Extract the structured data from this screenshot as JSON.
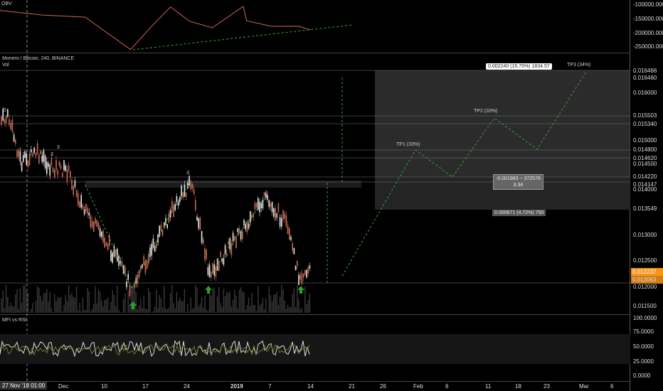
{
  "header": {
    "symbol_line": "Monero / Bitcoin, 240, BINANCE",
    "vol_label": "Vol",
    "top_indicator_label": "OBV",
    "mfi_label": "MFI vs RSI"
  },
  "top_pane_ticks": [
    "-100000.0000",
    "-150000.0000",
    "-200000.0000",
    "-250000.0000"
  ],
  "price_ticks": [
    "0.016466",
    "0.016460",
    "0.016000",
    "0.015503",
    "0.015340",
    "0.015000",
    "0.014800",
    "0.014620",
    "0.014500",
    "0.014220",
    "0.014147",
    "0.014000",
    "0.013549",
    "0.013000",
    "0.012500",
    "0.012237",
    "0.012063",
    "0.012000",
    "0.011500"
  ],
  "mfi_ticks": [
    "100.0000",
    "75.0000",
    "50.0000",
    "25.0000",
    "0.0000"
  ],
  "time_ticks": [
    "Dec",
    "10",
    "17",
    "24",
    "2019",
    "7",
    "14",
    "21",
    "26",
    "Feb",
    "6",
    "11",
    "18",
    "23",
    "Mar",
    "6"
  ],
  "crosshair_time": "27 Nov '18   01:00",
  "annotations": {
    "wave_5": "5",
    "wave_3a": "3",
    "wave_3b": "3",
    "wave_3c": "3",
    "tp1": "TP1 (33%)",
    "tp2": "TP2 (33%)",
    "tp3": "TP3 (34%)",
    "target_box": "0.002240 (15.75%) 1834.57",
    "stop_box_line1": "-0.001983 ~ 372578",
    "stop_box_line2": "3.34",
    "lower_box": "0.000671 (4.72%) 750"
  },
  "price_tags": {
    "last": "0.012237",
    "second": "0.012063"
  },
  "colors": {
    "background": "#000000",
    "bull_candle": "#e8e8e8",
    "bear_candle": "#c96a55",
    "dashed_green": "#3aa63a",
    "arrow_green": "#2e9e2e",
    "last_price": "#f7931a",
    "zone_fill": "#3a3a3a"
  }
}
